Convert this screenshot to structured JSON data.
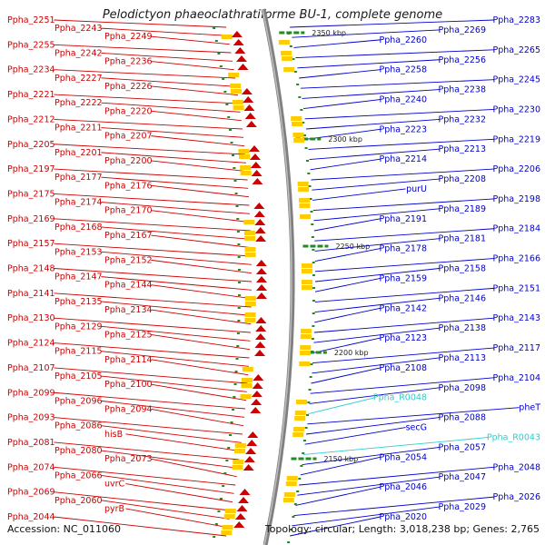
{
  "title": "Pelodictyon phaeoclathratiforme BU-1, complete genome",
  "footer": {
    "accession": "Accession: NC_011060",
    "stats": "Topology: circular; Length: 3,018,238 bp; Genes: 2,765"
  },
  "colors": {
    "reverse_strand": "#cc0000",
    "forward_strand": "#0000cc",
    "rna": "#33cccc",
    "backbone": "#808080",
    "tick": "#228b22"
  },
  "scale_marks": [
    "2350 kbp",
    "2300 kbp",
    "2250 kbp",
    "2200 kbp",
    "2150 kbp"
  ],
  "left_labels": [
    "Ppha_2251",
    "Ppha_2243",
    "Ppha_2249",
    "Ppha_2255",
    "Ppha_2242",
    "Ppha_2236",
    "Ppha_2234",
    "Ppha_2227",
    "Ppha_2226",
    "Ppha_2221",
    "Ppha_2222",
    "Ppha_2220",
    "Ppha_2212",
    "Ppha_2211",
    "Ppha_2207",
    "Ppha_2205",
    "Ppha_2201",
    "Ppha_2200",
    "Ppha_2197",
    "Ppha_2177",
    "Ppha_2176",
    "Ppha_2175",
    "Ppha_2174",
    "Ppha_2170",
    "Ppha_2169",
    "Ppha_2168",
    "Ppha_2167",
    "Ppha_2157",
    "Ppha_2153",
    "Ppha_2152",
    "Ppha_2148",
    "Ppha_2147",
    "Ppha_2144",
    "Ppha_2141",
    "Ppha_2135",
    "Ppha_2134",
    "Ppha_2130",
    "Ppha_2129",
    "Ppha_2125",
    "Ppha_2124",
    "Ppha_2115",
    "Ppha_2114",
    "Ppha_2107",
    "Ppha_2105",
    "Ppha_2100",
    "Ppha_2099",
    "Ppha_2096",
    "Ppha_2094",
    "Ppha_2093",
    "Ppha_2086",
    "hisB",
    "Ppha_2081",
    "Ppha_2080",
    "Ppha_2073",
    "Ppha_2074",
    "Ppha_2066",
    "uvrC",
    "Ppha_2069",
    "Ppha_2060",
    "pyrB",
    "Ppha_2044"
  ],
  "right_labels": [
    "Ppha_2283",
    "Ppha_2269",
    "Ppha_2260",
    "Ppha_2265",
    "Ppha_2256",
    "Ppha_2258",
    "Ppha_2245",
    "Ppha_2238",
    "Ppha_2240",
    "Ppha_2230",
    "Ppha_2232",
    "Ppha_2223",
    "Ppha_2219",
    "Ppha_2213",
    "Ppha_2214",
    "Ppha_2206",
    "Ppha_2208",
    "purU",
    "Ppha_2198",
    "Ppha_2189",
    "Ppha_2191",
    "Ppha_2184",
    "Ppha_2181",
    "Ppha_2178",
    "Ppha_2166",
    "Ppha_2158",
    "Ppha_2159",
    "Ppha_2151",
    "Ppha_2146",
    "Ppha_2142",
    "Ppha_2143",
    "Ppha_2138",
    "Ppha_2123",
    "Ppha_2117",
    "Ppha_2113",
    "Ppha_2108",
    "Ppha_2104",
    "Ppha_2098",
    "Ppha_R0048",
    "pheT",
    "Ppha_2088",
    "secG",
    "Ppha_R0043",
    "Ppha_2057",
    "Ppha_2054",
    "Ppha_2048",
    "Ppha_2047",
    "Ppha_2046",
    "Ppha_2026",
    "Ppha_2029",
    "Ppha_2020"
  ],
  "rna_genes": [
    "Ppha_R0048",
    "Ppha_R0043"
  ]
}
